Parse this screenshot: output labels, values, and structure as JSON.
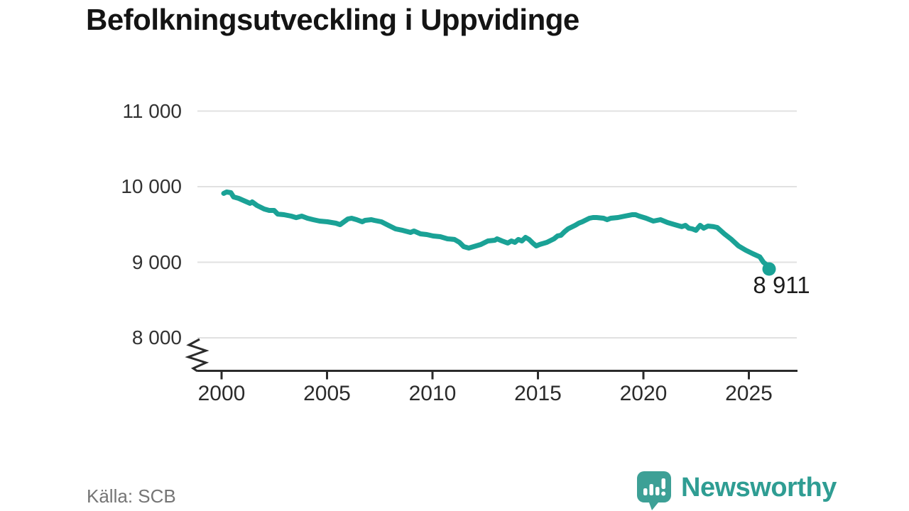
{
  "title": "Befolkningsutveckling i Uppvidinge",
  "source": "Källa: SCB",
  "branding": {
    "logo_text": "Newsworthy",
    "logo_color": "#2f9d93",
    "logo_icon": "speech-bubble-bar-chart"
  },
  "chart_data": {
    "type": "line",
    "title": "Befolkningsutveckling i Uppvidinge",
    "xlabel": "",
    "ylabel": "",
    "grid": true,
    "y_axis_break": true,
    "line_color": "#1aa296",
    "grid_color": "#e1e1e1",
    "axis_color": "#2b2b2b",
    "x_ticks": {
      "values": [
        2000,
        2005,
        2010,
        2015,
        2020,
        2025
      ],
      "labels": [
        "2000",
        "2005",
        "2010",
        "2015",
        "2020",
        "2025"
      ]
    },
    "y_ticks": {
      "values": [
        8000,
        9000,
        10000,
        11000
      ],
      "labels": [
        "8 000",
        "9 000",
        "10 000",
        "11 000"
      ]
    },
    "xlim": [
      1998.9,
      2027.3
    ],
    "ylim_shown": [
      7700,
      11600
    ],
    "last_value": 8911,
    "last_point_label": "8 911",
    "series": [
      {
        "name": "Befolkning",
        "points": [
          [
            2000.1,
            9911
          ],
          [
            2000.24,
            9930
          ],
          [
            2000.44,
            9920
          ],
          [
            2000.57,
            9864
          ],
          [
            2000.81,
            9845
          ],
          [
            2001.04,
            9817
          ],
          [
            2001.35,
            9779
          ],
          [
            2001.45,
            9798
          ],
          [
            2001.68,
            9751
          ],
          [
            2002.02,
            9704
          ],
          [
            2002.26,
            9685
          ],
          [
            2002.49,
            9685
          ],
          [
            2002.66,
            9638
          ],
          [
            2002.96,
            9629
          ],
          [
            2003.3,
            9610
          ],
          [
            2003.54,
            9591
          ],
          [
            2003.8,
            9610
          ],
          [
            2004.07,
            9582
          ],
          [
            2004.34,
            9563
          ],
          [
            2004.65,
            9545
          ],
          [
            2005.02,
            9535
          ],
          [
            2005.42,
            9516
          ],
          [
            2005.62,
            9498
          ],
          [
            2005.99,
            9573
          ],
          [
            2006.16,
            9582
          ],
          [
            2006.4,
            9563
          ],
          [
            2006.67,
            9535
          ],
          [
            2006.8,
            9554
          ],
          [
            2007.1,
            9563
          ],
          [
            2007.24,
            9554
          ],
          [
            2007.58,
            9535
          ],
          [
            2007.91,
            9488
          ],
          [
            2008.25,
            9441
          ],
          [
            2008.59,
            9422
          ],
          [
            2008.96,
            9394
          ],
          [
            2009.12,
            9413
          ],
          [
            2009.43,
            9376
          ],
          [
            2009.73,
            9366
          ],
          [
            2010.03,
            9347
          ],
          [
            2010.37,
            9338
          ],
          [
            2010.71,
            9310
          ],
          [
            2011.04,
            9301
          ],
          [
            2011.28,
            9263
          ],
          [
            2011.48,
            9207
          ],
          [
            2011.72,
            9188
          ],
          [
            2011.95,
            9207
          ],
          [
            2012.29,
            9235
          ],
          [
            2012.63,
            9282
          ],
          [
            2012.96,
            9291
          ],
          [
            2013.06,
            9310
          ],
          [
            2013.3,
            9282
          ],
          [
            2013.57,
            9254
          ],
          [
            2013.74,
            9282
          ],
          [
            2013.91,
            9263
          ],
          [
            2014.07,
            9301
          ],
          [
            2014.24,
            9282
          ],
          [
            2014.41,
            9329
          ],
          [
            2014.58,
            9301
          ],
          [
            2014.75,
            9254
          ],
          [
            2014.92,
            9216
          ],
          [
            2015.08,
            9235
          ],
          [
            2015.42,
            9263
          ],
          [
            2015.76,
            9310
          ],
          [
            2015.93,
            9348
          ],
          [
            2016.09,
            9357
          ],
          [
            2016.26,
            9404
          ],
          [
            2016.43,
            9442
          ],
          [
            2016.77,
            9489
          ],
          [
            2016.94,
            9517
          ],
          [
            2017.1,
            9535
          ],
          [
            2017.44,
            9582
          ],
          [
            2017.61,
            9592
          ],
          [
            2017.78,
            9592
          ],
          [
            2018.11,
            9582
          ],
          [
            2018.28,
            9563
          ],
          [
            2018.45,
            9582
          ],
          [
            2018.79,
            9592
          ],
          [
            2019.12,
            9610
          ],
          [
            2019.46,
            9629
          ],
          [
            2019.63,
            9629
          ],
          [
            2019.8,
            9610
          ],
          [
            2020.13,
            9582
          ],
          [
            2020.3,
            9563
          ],
          [
            2020.47,
            9545
          ],
          [
            2020.81,
            9563
          ],
          [
            2021.14,
            9526
          ],
          [
            2021.48,
            9498
          ],
          [
            2021.82,
            9470
          ],
          [
            2021.99,
            9488
          ],
          [
            2022.15,
            9451
          ],
          [
            2022.32,
            9441
          ],
          [
            2022.49,
            9423
          ],
          [
            2022.69,
            9488
          ],
          [
            2022.86,
            9451
          ],
          [
            2023.06,
            9479
          ],
          [
            2023.33,
            9470
          ],
          [
            2023.5,
            9460
          ],
          [
            2023.84,
            9376
          ],
          [
            2024.18,
            9301
          ],
          [
            2024.51,
            9216
          ],
          [
            2024.85,
            9160
          ],
          [
            2025.19,
            9113
          ],
          [
            2025.52,
            9071
          ],
          [
            2025.69,
            9000
          ],
          [
            2025.86,
            8962
          ],
          [
            2025.96,
            8911
          ]
        ]
      }
    ]
  }
}
